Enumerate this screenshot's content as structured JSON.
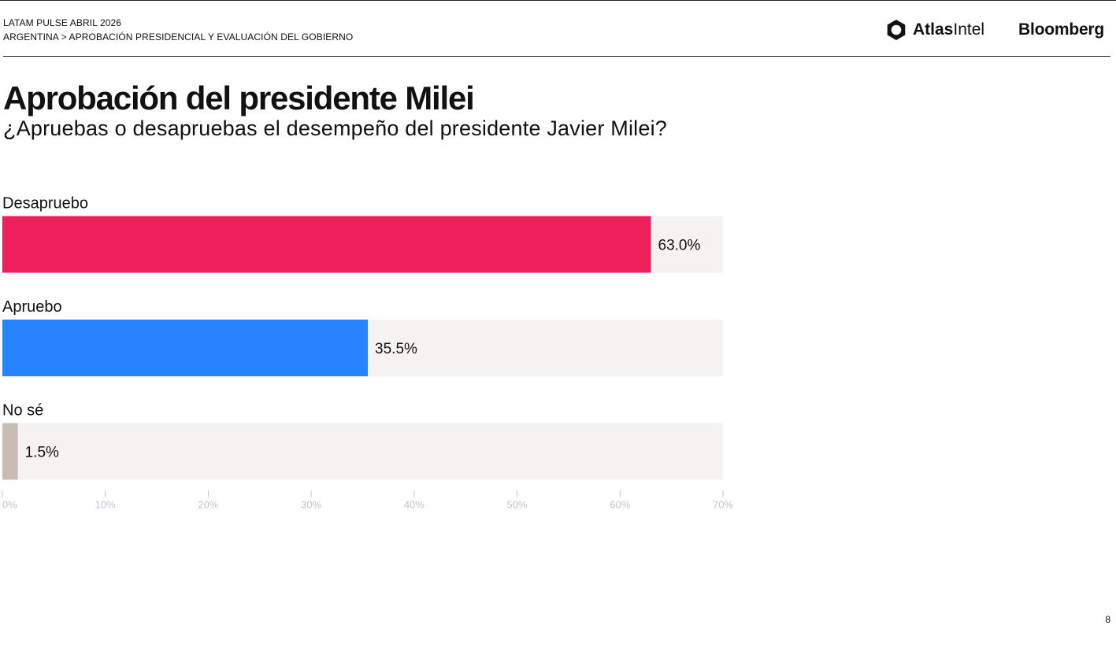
{
  "header": {
    "line1": "LATAM PULSE ABRIL 2026",
    "line2": "ARGENTINA > APROBACIÓN PRESIDENCIAL Y EVALUACIÓN DEL GOBIERNO"
  },
  "brands": {
    "atlas_bold": "Atlas",
    "atlas_regular": "Intel",
    "bloomberg": "Bloomberg"
  },
  "title": "Aprobación del presidente Milei",
  "subtitle": "¿Apruebas o desapruebas el desempeño del presidente Javier Milei?",
  "page_number": "8",
  "colors": {
    "desapruebo": "#ee1f5b",
    "apruebo": "#2684ff",
    "no_se": "#c8bcb3",
    "track": "#f4f3f1",
    "axis_text": "#c5c2d2"
  },
  "chart_data": {
    "type": "bar",
    "orientation": "horizontal",
    "categories": [
      "Desapruebo",
      "Apruebo",
      "No sé"
    ],
    "values": [
      63.0,
      35.5,
      1.5
    ],
    "value_labels": [
      "63.0%",
      "35.5%",
      "1.5%"
    ],
    "bar_colors": [
      "#ee1f5b",
      "#2684ff",
      "#c8bcb3"
    ],
    "xlim": [
      0,
      70
    ],
    "xticks": [
      0,
      10,
      20,
      30,
      40,
      50,
      60,
      70
    ],
    "xtick_labels": [
      "0%",
      "10%",
      "20%",
      "30%",
      "40%",
      "50%",
      "60%",
      "70%"
    ],
    "title": "Aprobación del presidente Milei",
    "xlabel": "",
    "ylabel": ""
  }
}
